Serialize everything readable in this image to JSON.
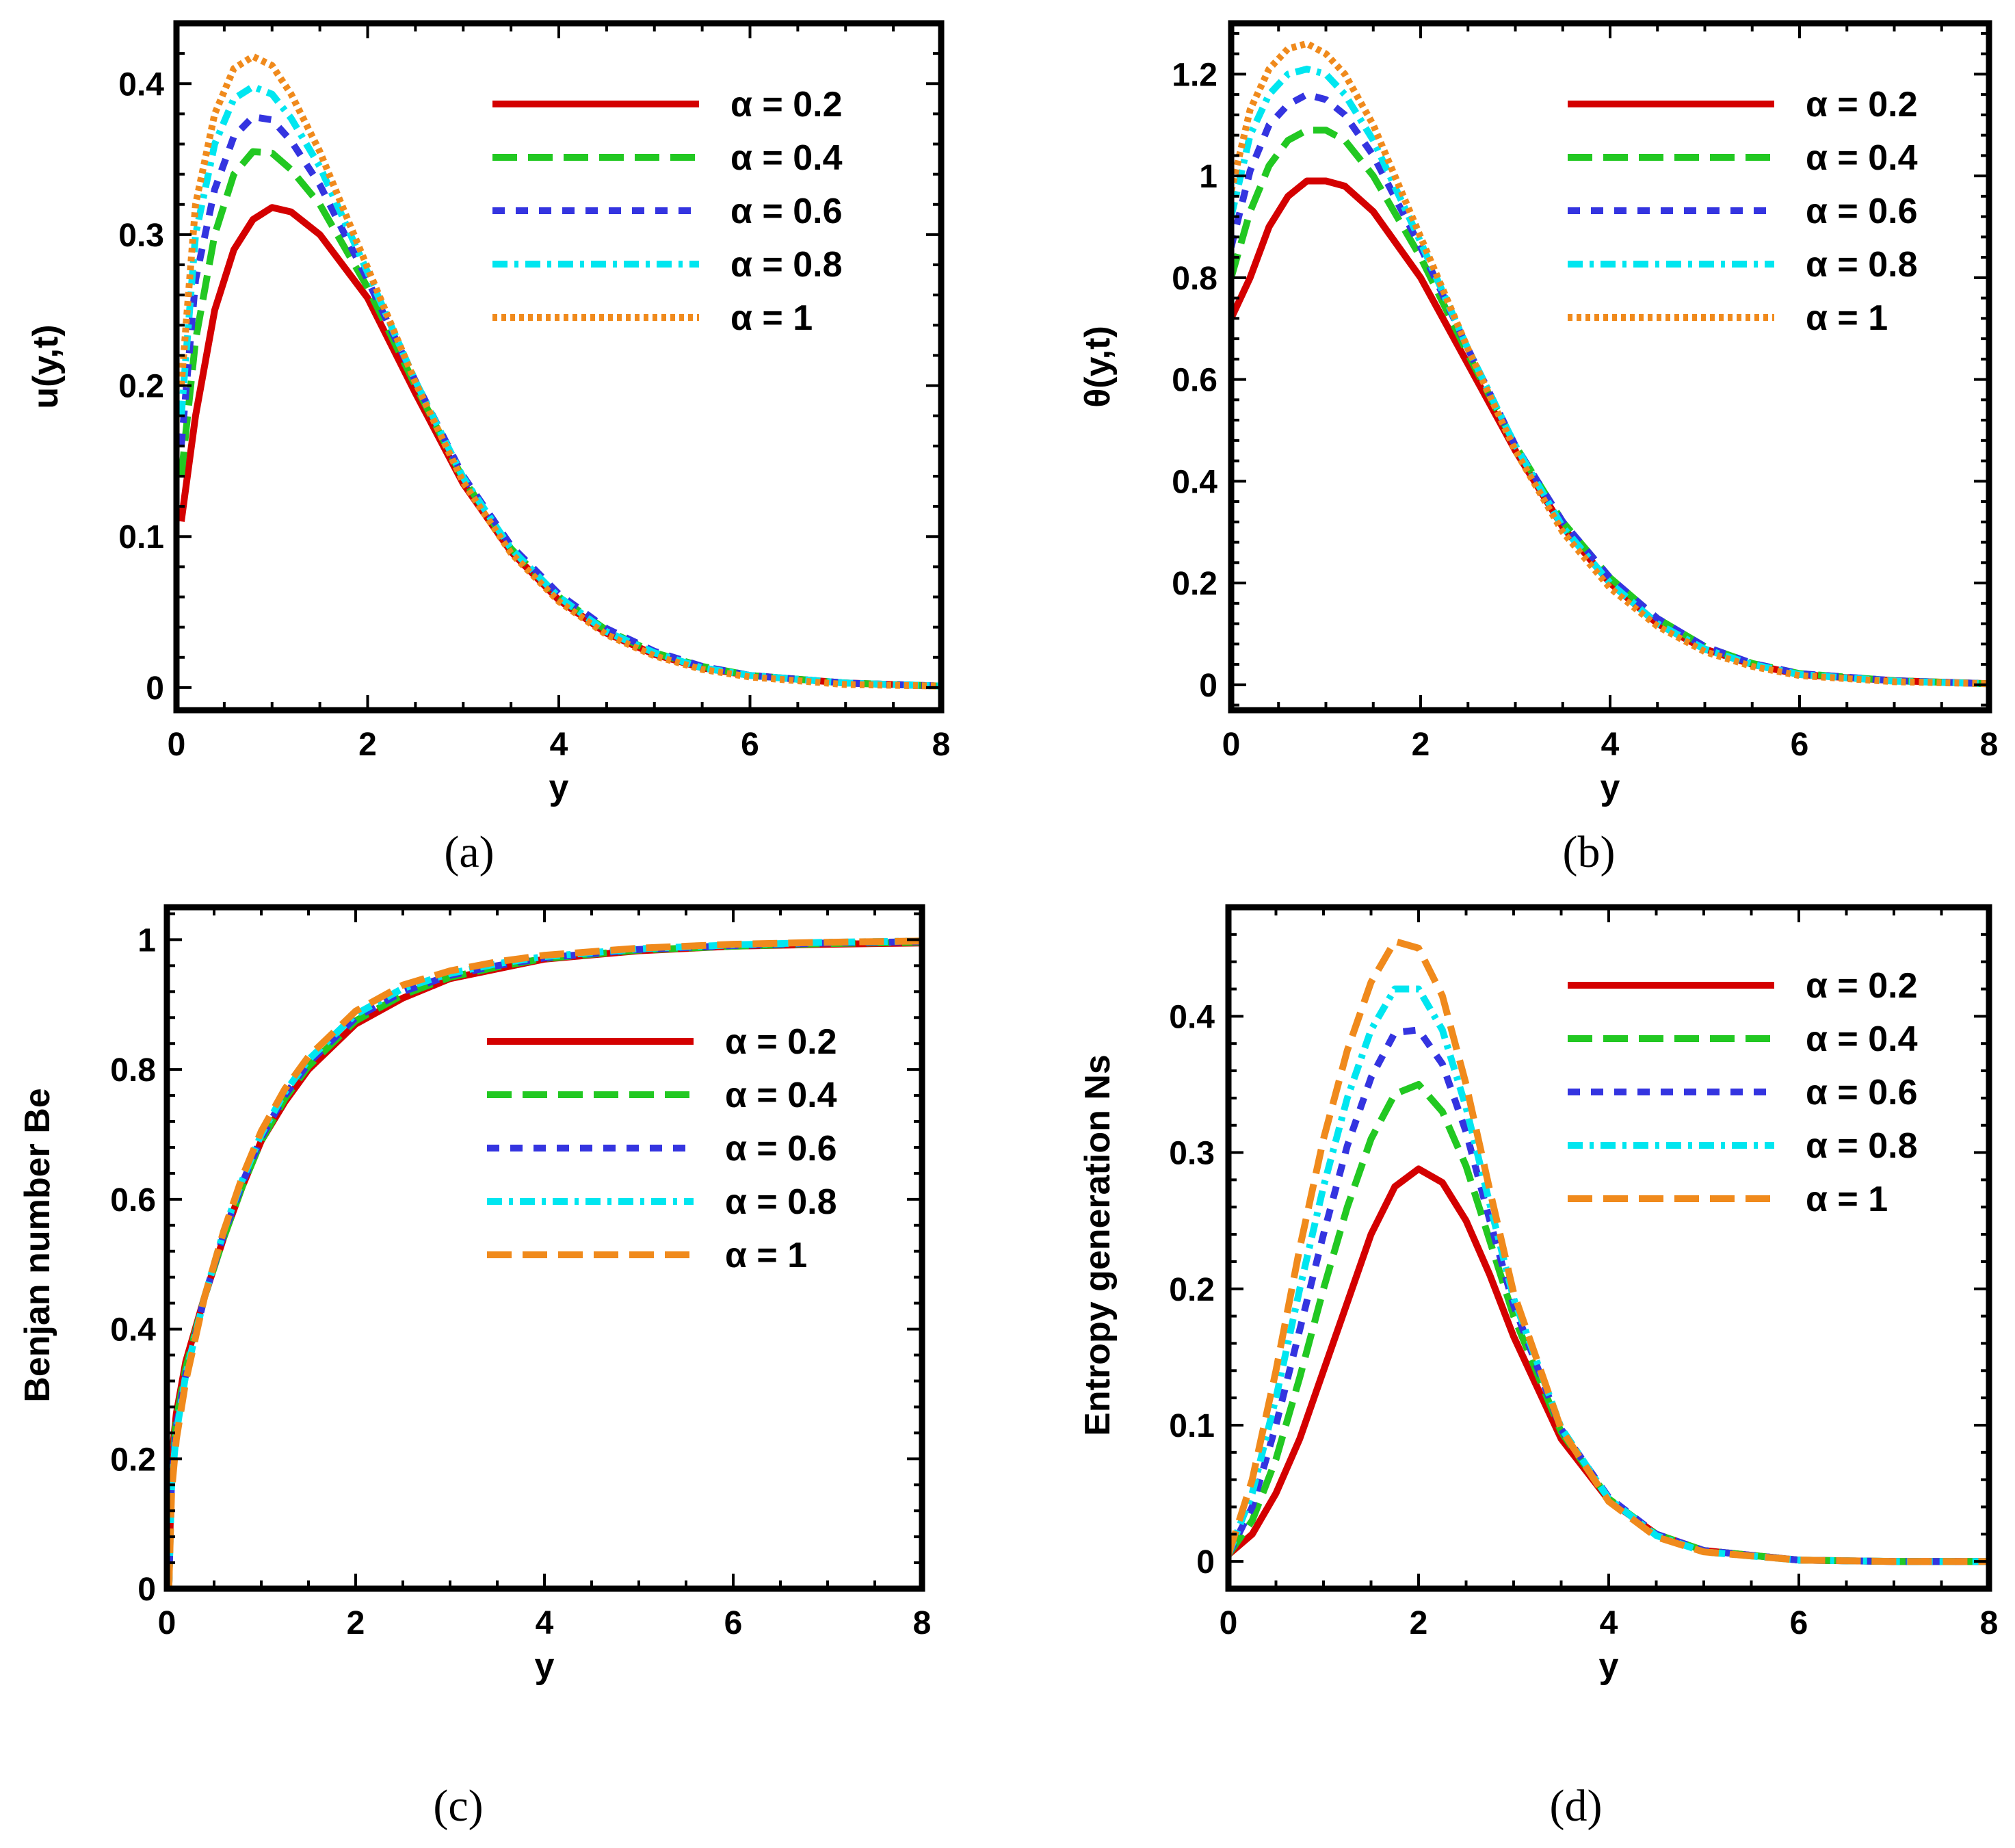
{
  "chart_data": [
    {
      "type": "line",
      "panel": "a",
      "caption": "(a)",
      "xlabel": "y",
      "ylabel": "u(y,t)",
      "xlim": [
        0,
        8
      ],
      "ylim": [
        -0.015,
        0.44
      ],
      "xticks": [
        "0",
        "2",
        "4",
        "6",
        "8"
      ],
      "xtick_values": [
        0,
        2,
        4,
        6,
        8
      ],
      "yticks": [
        "0",
        "0.1",
        "0.2",
        "0.3",
        "0.4"
      ],
      "ytick_values": [
        0,
        0.1,
        0.2,
        0.3,
        0.4
      ],
      "legend_position": "top-right",
      "series": [
        {
          "name": "α = 0.2",
          "color": "#d40000",
          "dash": "solid",
          "x": [
            0.05,
            0.2,
            0.4,
            0.6,
            0.8,
            1.0,
            1.2,
            1.5,
            2.0,
            2.5,
            3.0,
            3.5,
            4.0,
            4.5,
            5.0,
            5.5,
            6.0,
            7.0,
            8.0
          ],
          "y": [
            0.11,
            0.18,
            0.25,
            0.29,
            0.31,
            0.318,
            0.315,
            0.3,
            0.258,
            0.195,
            0.135,
            0.09,
            0.058,
            0.036,
            0.022,
            0.013,
            0.008,
            0.003,
            0.001
          ]
        },
        {
          "name": "α = 0.4",
          "color": "#22c822",
          "dash": "long-dash",
          "x": [
            0.05,
            0.2,
            0.4,
            0.6,
            0.8,
            1.0,
            1.2,
            1.5,
            2.0,
            2.5,
            3.0,
            3.5,
            4.0,
            4.5,
            5.0,
            5.5,
            6.0,
            7.0,
            8.0
          ],
          "y": [
            0.14,
            0.23,
            0.3,
            0.34,
            0.355,
            0.354,
            0.343,
            0.32,
            0.265,
            0.2,
            0.138,
            0.092,
            0.06,
            0.038,
            0.023,
            0.014,
            0.008,
            0.003,
            0.001
          ]
        },
        {
          "name": "α = 0.6",
          "color": "#3434e0",
          "dash": "short-dash",
          "x": [
            0.05,
            0.2,
            0.4,
            0.6,
            0.8,
            1.0,
            1.2,
            1.5,
            2.0,
            2.5,
            3.0,
            3.5,
            4.0,
            4.5,
            5.0,
            5.5,
            6.0,
            7.0,
            8.0
          ],
          "y": [
            0.16,
            0.27,
            0.33,
            0.365,
            0.378,
            0.376,
            0.362,
            0.333,
            0.27,
            0.203,
            0.14,
            0.094,
            0.062,
            0.039,
            0.024,
            0.014,
            0.008,
            0.003,
            0.001
          ]
        },
        {
          "name": "α = 0.8",
          "color": "#00e6f0",
          "dash": "dash-dot",
          "x": [
            0.05,
            0.2,
            0.4,
            0.6,
            0.8,
            1.0,
            1.2,
            1.5,
            2.0,
            2.5,
            3.0,
            3.5,
            4.0,
            4.5,
            5.0,
            5.5,
            6.0,
            7.0,
            8.0
          ],
          "y": [
            0.18,
            0.3,
            0.36,
            0.39,
            0.398,
            0.393,
            0.377,
            0.345,
            0.275,
            0.203,
            0.139,
            0.092,
            0.06,
            0.037,
            0.023,
            0.013,
            0.008,
            0.003,
            0.001
          ]
        },
        {
          "name": "α = 1",
          "color": "#f08a1c",
          "dash": "dotted",
          "x": [
            0.05,
            0.2,
            0.4,
            0.6,
            0.8,
            1.0,
            1.2,
            1.5,
            2.0,
            2.5,
            3.0,
            3.5,
            4.0,
            4.5,
            5.0,
            5.5,
            6.0,
            7.0,
            8.0
          ],
          "y": [
            0.2,
            0.32,
            0.38,
            0.41,
            0.418,
            0.412,
            0.393,
            0.355,
            0.278,
            0.202,
            0.136,
            0.089,
            0.057,
            0.035,
            0.021,
            0.012,
            0.007,
            0.002,
            0.001
          ]
        }
      ]
    },
    {
      "type": "line",
      "panel": "b",
      "caption": "(b)",
      "xlabel": "y",
      "ylabel": "θ(y,t)",
      "xlim": [
        0,
        8
      ],
      "ylim": [
        -0.05,
        1.3
      ],
      "xticks": [
        "0",
        "2",
        "4",
        "6",
        "8"
      ],
      "xtick_values": [
        0,
        2,
        4,
        6,
        8
      ],
      "yticks": [
        "0",
        "0.2",
        "0.4",
        "0.6",
        "0.8",
        "1",
        "1.2"
      ],
      "ytick_values": [
        0,
        0.2,
        0.4,
        0.6,
        0.8,
        1.0,
        1.2
      ],
      "legend_position": "top-right",
      "series": [
        {
          "name": "α = 0.2",
          "color": "#d40000",
          "dash": "solid",
          "x": [
            0.0,
            0.2,
            0.4,
            0.6,
            0.8,
            1.0,
            1.2,
            1.5,
            2.0,
            2.5,
            3.0,
            3.5,
            4.0,
            4.5,
            5.0,
            5.5,
            6.0,
            7.0,
            8.0
          ],
          "y": [
            0.72,
            0.8,
            0.9,
            0.96,
            0.99,
            0.99,
            0.98,
            0.93,
            0.8,
            0.63,
            0.46,
            0.31,
            0.2,
            0.12,
            0.07,
            0.04,
            0.02,
            0.008,
            0.002
          ]
        },
        {
          "name": "α = 0.4",
          "color": "#22c822",
          "dash": "long-dash",
          "x": [
            0.0,
            0.2,
            0.4,
            0.6,
            0.8,
            1.0,
            1.2,
            1.5,
            2.0,
            2.5,
            3.0,
            3.5,
            4.0,
            4.5,
            5.0,
            5.5,
            6.0,
            7.0,
            8.0
          ],
          "y": [
            0.8,
            0.93,
            1.02,
            1.07,
            1.09,
            1.09,
            1.07,
            1.0,
            0.84,
            0.65,
            0.47,
            0.32,
            0.21,
            0.13,
            0.075,
            0.042,
            0.022,
            0.008,
            0.002
          ]
        },
        {
          "name": "α = 0.6",
          "color": "#3434e0",
          "dash": "short-dash",
          "x": [
            0.0,
            0.2,
            0.4,
            0.6,
            0.8,
            1.0,
            1.2,
            1.5,
            2.0,
            2.5,
            3.0,
            3.5,
            4.0,
            4.5,
            5.0,
            5.5,
            6.0,
            7.0,
            8.0
          ],
          "y": [
            0.86,
            1.01,
            1.1,
            1.14,
            1.16,
            1.15,
            1.12,
            1.04,
            0.86,
            0.66,
            0.47,
            0.32,
            0.21,
            0.13,
            0.075,
            0.042,
            0.022,
            0.008,
            0.002
          ]
        },
        {
          "name": "α = 0.8",
          "color": "#00e6f0",
          "dash": "dash-dot",
          "x": [
            0.0,
            0.2,
            0.4,
            0.6,
            0.8,
            1.0,
            1.2,
            1.5,
            2.0,
            2.5,
            3.0,
            3.5,
            4.0,
            4.5,
            5.0,
            5.5,
            6.0,
            7.0,
            8.0
          ],
          "y": [
            0.92,
            1.08,
            1.16,
            1.2,
            1.21,
            1.2,
            1.16,
            1.07,
            0.87,
            0.66,
            0.47,
            0.31,
            0.2,
            0.12,
            0.07,
            0.04,
            0.02,
            0.007,
            0.002
          ]
        },
        {
          "name": "α = 1",
          "color": "#f08a1c",
          "dash": "dotted",
          "x": [
            0.0,
            0.2,
            0.4,
            0.6,
            0.8,
            1.0,
            1.2,
            1.5,
            2.0,
            2.5,
            3.0,
            3.5,
            4.0,
            4.5,
            5.0,
            5.5,
            6.0,
            7.0,
            8.0
          ],
          "y": [
            0.97,
            1.13,
            1.21,
            1.25,
            1.26,
            1.24,
            1.2,
            1.1,
            0.88,
            0.66,
            0.46,
            0.3,
            0.19,
            0.115,
            0.065,
            0.036,
            0.018,
            0.006,
            0.002
          ]
        }
      ]
    },
    {
      "type": "line",
      "panel": "c",
      "caption": "(c)",
      "xlabel": "y",
      "ylabel": "Benjan number Be",
      "xlim": [
        0,
        8
      ],
      "ylim": [
        0,
        1.05
      ],
      "xticks": [
        "0",
        "2",
        "4",
        "6",
        "8"
      ],
      "xtick_values": [
        0,
        2,
        4,
        6,
        8
      ],
      "yticks": [
        "0",
        "0.2",
        "0.4",
        "0.6",
        "0.8",
        "1"
      ],
      "ytick_values": [
        0,
        0.2,
        0.4,
        0.6,
        0.8,
        1.0
      ],
      "legend_position": "right",
      "series": [
        {
          "name": "α = 0.2",
          "color": "#d40000",
          "dash": "solid",
          "x": [
            0.02,
            0.05,
            0.1,
            0.2,
            0.4,
            0.6,
            0.8,
            1.0,
            1.25,
            1.5,
            2.0,
            2.5,
            3.0,
            3.5,
            4.0,
            5.0,
            6.0,
            7.0,
            8.0
          ],
          "y": [
            0.0,
            0.2,
            0.27,
            0.35,
            0.45,
            0.54,
            0.62,
            0.69,
            0.75,
            0.8,
            0.87,
            0.91,
            0.94,
            0.955,
            0.97,
            0.983,
            0.99,
            0.993,
            0.995
          ]
        },
        {
          "name": "α = 0.4",
          "color": "#22c822",
          "dash": "long-dash",
          "x": [
            0.02,
            0.05,
            0.1,
            0.2,
            0.4,
            0.6,
            0.8,
            1.0,
            1.25,
            1.5,
            2.0,
            2.5,
            3.0,
            3.5,
            4.0,
            5.0,
            6.0,
            7.0,
            8.0
          ],
          "y": [
            0.0,
            0.18,
            0.26,
            0.34,
            0.45,
            0.54,
            0.62,
            0.69,
            0.755,
            0.805,
            0.875,
            0.915,
            0.942,
            0.958,
            0.971,
            0.984,
            0.99,
            0.994,
            0.996
          ]
        },
        {
          "name": "α = 0.6",
          "color": "#3434e0",
          "dash": "short-dash",
          "x": [
            0.02,
            0.05,
            0.1,
            0.2,
            0.4,
            0.6,
            0.8,
            1.0,
            1.25,
            1.5,
            2.0,
            2.5,
            3.0,
            3.5,
            4.0,
            5.0,
            6.0,
            7.0,
            8.0
          ],
          "y": [
            0.0,
            0.17,
            0.25,
            0.33,
            0.45,
            0.545,
            0.625,
            0.695,
            0.76,
            0.81,
            0.88,
            0.92,
            0.945,
            0.96,
            0.972,
            0.985,
            0.991,
            0.995,
            0.997
          ]
        },
        {
          "name": "α = 0.8",
          "color": "#00e6f0",
          "dash": "dash-dot",
          "x": [
            0.02,
            0.05,
            0.1,
            0.2,
            0.4,
            0.6,
            0.8,
            1.0,
            1.25,
            1.5,
            2.0,
            2.5,
            3.0,
            3.5,
            4.0,
            5.0,
            6.0,
            7.0,
            8.0
          ],
          "y": [
            0.0,
            0.16,
            0.24,
            0.33,
            0.45,
            0.55,
            0.63,
            0.7,
            0.765,
            0.815,
            0.885,
            0.925,
            0.948,
            0.963,
            0.974,
            0.986,
            0.992,
            0.996,
            0.998
          ]
        },
        {
          "name": "α = 1",
          "color": "#f08a1c",
          "dash": "long-dash",
          "x": [
            0.02,
            0.05,
            0.1,
            0.2,
            0.4,
            0.6,
            0.8,
            1.0,
            1.25,
            1.5,
            2.0,
            2.5,
            3.0,
            3.5,
            4.0,
            5.0,
            6.0,
            7.0,
            8.0
          ],
          "y": [
            0.0,
            0.15,
            0.23,
            0.32,
            0.45,
            0.55,
            0.635,
            0.705,
            0.77,
            0.82,
            0.89,
            0.93,
            0.952,
            0.966,
            0.976,
            0.987,
            0.993,
            0.996,
            0.998
          ]
        }
      ]
    },
    {
      "type": "line",
      "panel": "d",
      "caption": "(d)",
      "xlabel": "y",
      "ylabel": "Entropy generation Ns",
      "xlim": [
        0,
        8
      ],
      "ylim": [
        -0.02,
        0.48
      ],
      "xticks": [
        "0",
        "2",
        "4",
        "6",
        "8"
      ],
      "xtick_values": [
        0,
        2,
        4,
        6,
        8
      ],
      "yticks": [
        "0",
        "0.1",
        "0.2",
        "0.3",
        "0.4"
      ],
      "ytick_values": [
        0,
        0.1,
        0.2,
        0.3,
        0.4
      ],
      "legend_position": "top-right",
      "series": [
        {
          "name": "α = 0.2",
          "color": "#d40000",
          "dash": "solid",
          "x": [
            0.0,
            0.25,
            0.5,
            0.75,
            1.0,
            1.25,
            1.5,
            1.75,
            2.0,
            2.25,
            2.5,
            2.75,
            3.0,
            3.5,
            4.0,
            4.5,
            5.0,
            6.0,
            7.0,
            8.0
          ],
          "y": [
            0.005,
            0.02,
            0.05,
            0.09,
            0.14,
            0.19,
            0.24,
            0.275,
            0.288,
            0.278,
            0.25,
            0.21,
            0.165,
            0.09,
            0.045,
            0.02,
            0.008,
            0.001,
            0.0,
            0.0
          ]
        },
        {
          "name": "α = 0.4",
          "color": "#22c822",
          "dash": "long-dash",
          "x": [
            0.0,
            0.25,
            0.5,
            0.75,
            1.0,
            1.25,
            1.5,
            1.75,
            2.0,
            2.25,
            2.5,
            2.75,
            3.0,
            3.5,
            4.0,
            4.5,
            5.0,
            6.0,
            7.0,
            8.0
          ],
          "y": [
            0.005,
            0.03,
            0.075,
            0.135,
            0.2,
            0.26,
            0.31,
            0.343,
            0.35,
            0.33,
            0.29,
            0.235,
            0.18,
            0.095,
            0.046,
            0.02,
            0.008,
            0.001,
            0.0,
            0.0
          ]
        },
        {
          "name": "α = 0.6",
          "color": "#3434e0",
          "dash": "short-dash",
          "x": [
            0.0,
            0.25,
            0.5,
            0.75,
            1.0,
            1.25,
            1.5,
            1.75,
            2.0,
            2.25,
            2.5,
            2.75,
            3.0,
            3.5,
            4.0,
            4.5,
            5.0,
            6.0,
            7.0,
            8.0
          ],
          "y": [
            0.005,
            0.04,
            0.1,
            0.17,
            0.24,
            0.305,
            0.355,
            0.388,
            0.39,
            0.365,
            0.315,
            0.25,
            0.188,
            0.097,
            0.047,
            0.02,
            0.008,
            0.001,
            0.0,
            0.0
          ]
        },
        {
          "name": "α = 0.8",
          "color": "#00e6f0",
          "dash": "dash-dot",
          "x": [
            0.0,
            0.25,
            0.5,
            0.75,
            1.0,
            1.25,
            1.5,
            1.75,
            2.0,
            2.25,
            2.5,
            2.75,
            3.0,
            3.5,
            4.0,
            4.5,
            5.0,
            6.0,
            7.0,
            8.0
          ],
          "y": [
            0.005,
            0.05,
            0.12,
            0.2,
            0.275,
            0.34,
            0.39,
            0.42,
            0.42,
            0.39,
            0.333,
            0.262,
            0.193,
            0.098,
            0.046,
            0.019,
            0.007,
            0.001,
            0.0,
            0.0
          ]
        },
        {
          "name": "α = 1",
          "color": "#f08a1c",
          "dash": "long-dash",
          "x": [
            0.0,
            0.25,
            0.5,
            0.75,
            1.0,
            1.25,
            1.5,
            1.75,
            2.0,
            2.25,
            2.5,
            2.75,
            3.0,
            3.5,
            4.0,
            4.5,
            5.0,
            6.0,
            7.0,
            8.0
          ],
          "y": [
            0.005,
            0.06,
            0.14,
            0.23,
            0.31,
            0.375,
            0.425,
            0.455,
            0.45,
            0.415,
            0.35,
            0.272,
            0.197,
            0.097,
            0.044,
            0.018,
            0.007,
            0.001,
            0.0,
            0.0
          ]
        }
      ]
    }
  ]
}
